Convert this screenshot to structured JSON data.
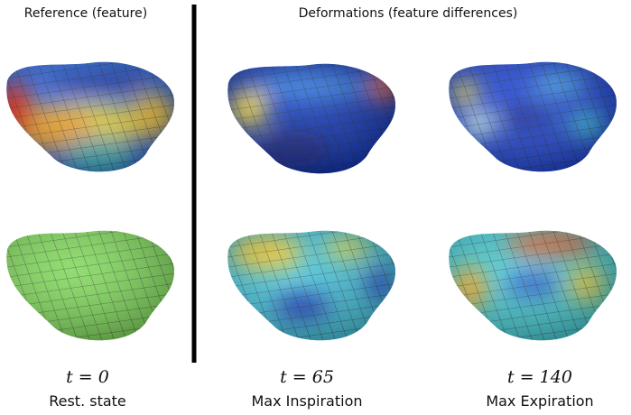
{
  "header": {
    "left": "Reference (feature)",
    "right": "Deformations (feature differences)"
  },
  "columns": [
    {
      "time": "t = 0",
      "caption": "Rest. state"
    },
    {
      "time": "t = 65",
      "caption": "Max Inspiration"
    },
    {
      "time": "t = 140",
      "caption": "Max Expiration"
    }
  ]
}
